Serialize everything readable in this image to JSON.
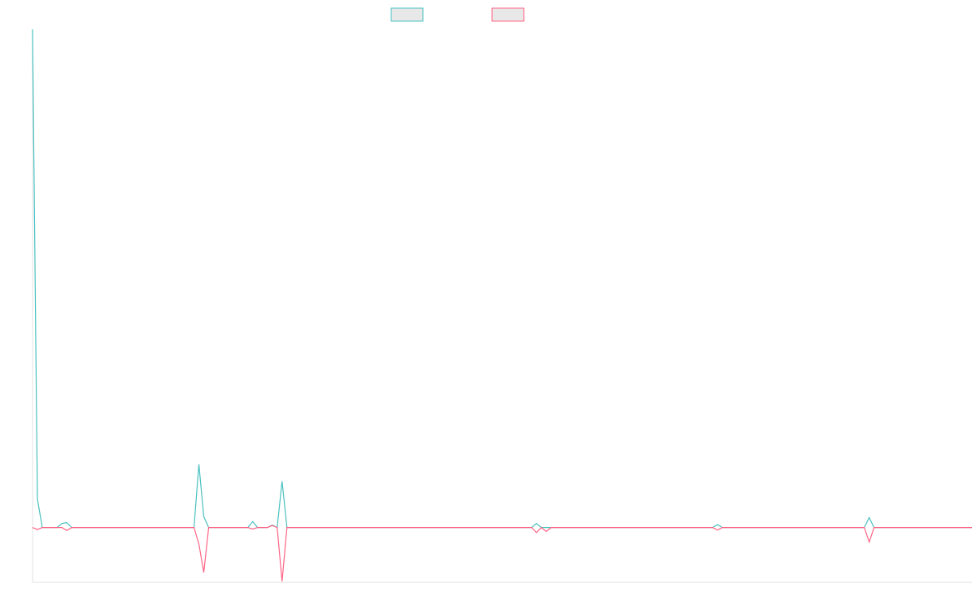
{
  "chart_data": {
    "type": "line",
    "categories": [
      null,
      null,
      null,
      null,
      null,
      null,
      null,
      null,
      null,
      null,
      null,
      null,
      null,
      null,
      null,
      null,
      null,
      null,
      null,
      null,
      null,
      null,
      null,
      null,
      null,
      null,
      null,
      null,
      null,
      null,
      null,
      null,
      null,
      null,
      null,
      null,
      null,
      null,
      null,
      null,
      null,
      null,
      null,
      null,
      null,
      null,
      null,
      null,
      null,
      null,
      null,
      null,
      null,
      null,
      null,
      null,
      null,
      null,
      null,
      null,
      null,
      null,
      null,
      null,
      null,
      null,
      null,
      null,
      null,
      null,
      null,
      null,
      null,
      null,
      null,
      null,
      null,
      null,
      null,
      null,
      null,
      null,
      null,
      null,
      null,
      null,
      null,
      null,
      null,
      null,
      null,
      null,
      null,
      null,
      null,
      null,
      null,
      null,
      null,
      null,
      null,
      null,
      null,
      null,
      null,
      null,
      null,
      null,
      null,
      null,
      null,
      null,
      null,
      null,
      null,
      null,
      null,
      null,
      null,
      null,
      null,
      null,
      null,
      null,
      null,
      null,
      null,
      null,
      null,
      null,
      null,
      null,
      null,
      null,
      null,
      null,
      null,
      null,
      null,
      null,
      null,
      null,
      null,
      null,
      null,
      null,
      null,
      null,
      null,
      null,
      null,
      null,
      null,
      null,
      null,
      null,
      null,
      null,
      null,
      null,
      null,
      null,
      null,
      null,
      null,
      null,
      null,
      null,
      null,
      null,
      null,
      null,
      null,
      null,
      null,
      null,
      null,
      null,
      null,
      null,
      null,
      null,
      null,
      null,
      null,
      null,
      null,
      null,
      null,
      null,
      null,
      null,
      null
    ],
    "series": [
      {
        "color": "#4bc0c0",
        "values": [
          100,
          5.7,
          0,
          0,
          0,
          0,
          0.8,
          1,
          0,
          0,
          0,
          0,
          0,
          0,
          0,
          0,
          0,
          0,
          0,
          0,
          0,
          0,
          0,
          0,
          0,
          0,
          0,
          0,
          0,
          0,
          0,
          0,
          0,
          0,
          12.7,
          2.2,
          0,
          0,
          0,
          0,
          0,
          0,
          0,
          0,
          0,
          1.2,
          0,
          0,
          0,
          0.5,
          0,
          9.3,
          0,
          0,
          0,
          0,
          0,
          0,
          0,
          0,
          0,
          0,
          0,
          0,
          0,
          0,
          0,
          0,
          0,
          0,
          0,
          0,
          0,
          0,
          0,
          0,
          0,
          0,
          0,
          0,
          0,
          0,
          0,
          0,
          0,
          0,
          0,
          0,
          0,
          0,
          0,
          0,
          0,
          0,
          0,
          0,
          0,
          0,
          0,
          0,
          0,
          0,
          0,
          0.8,
          0,
          0,
          0,
          0,
          0,
          0,
          0,
          0,
          0,
          0,
          0,
          0,
          0,
          0,
          0,
          0,
          0,
          0,
          0,
          0,
          0,
          0,
          0,
          0,
          0,
          0,
          0,
          0,
          0,
          0,
          0,
          0,
          0,
          0,
          0,
          0,
          0.6,
          0,
          0,
          0,
          0,
          0,
          0,
          0,
          0,
          0,
          0,
          0,
          0,
          0,
          0,
          0,
          0,
          0,
          0,
          0,
          0,
          0,
          0,
          0,
          0,
          0,
          0,
          0,
          0,
          0,
          0,
          2,
          0,
          0,
          0,
          0,
          0,
          0,
          0,
          0,
          0,
          0,
          0,
          0,
          0,
          0,
          0,
          0,
          0,
          0,
          0,
          0,
          0
        ]
      },
      {
        "color": "#ff6384",
        "values": [
          0,
          -0.4,
          0,
          0,
          0,
          0,
          0,
          -0.6,
          0,
          0,
          0,
          0,
          0,
          0,
          0,
          0,
          0,
          0,
          0,
          0,
          0,
          0,
          0,
          0,
          0,
          0,
          0,
          0,
          0,
          0,
          0,
          0,
          0,
          0,
          -3.3,
          -9,
          0,
          0,
          0,
          0,
          0,
          0,
          0,
          0,
          0,
          -0.3,
          0,
          0,
          0,
          0.4,
          0,
          -10.8,
          0,
          0,
          0,
          0,
          0,
          0,
          0,
          0,
          0,
          0,
          0,
          0,
          0,
          0,
          0,
          0,
          0,
          0,
          0,
          0,
          0,
          0,
          0,
          0,
          0,
          0,
          0,
          0,
          0,
          0,
          0,
          0,
          0,
          0,
          0,
          0,
          0,
          0,
          0,
          0,
          0,
          0,
          0,
          0,
          0,
          0,
          0,
          0,
          0,
          0,
          0,
          -1,
          0,
          -0.8,
          0,
          0,
          0,
          0,
          0,
          0,
          0,
          0,
          0,
          0,
          0,
          0,
          0,
          0,
          0,
          0,
          0,
          0,
          0,
          0,
          0,
          0,
          0,
          0,
          0,
          0,
          0,
          0,
          0,
          0,
          0,
          0,
          0,
          0,
          -0.5,
          0,
          0,
          0,
          0,
          0,
          0,
          0,
          0,
          0,
          0,
          0,
          0,
          0,
          0,
          0,
          0,
          0,
          0,
          0,
          0,
          0,
          0,
          0,
          0,
          0,
          0,
          0,
          0,
          0,
          0,
          -2.9,
          0,
          0,
          0,
          0,
          0,
          0,
          0,
          0,
          0,
          0,
          0,
          0,
          0,
          0,
          0,
          0,
          0,
          0,
          0,
          0,
          0
        ]
      }
    ],
    "ylim": [
      -11,
      100
    ],
    "grid": false,
    "legend": "top"
  }
}
